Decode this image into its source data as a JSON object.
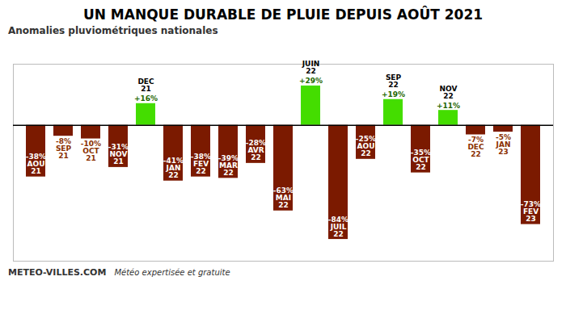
{
  "chart_data": {
    "type": "bar",
    "title": "UN MANQUE DURABLE DE PLUIE DEPUIS AOÛT 2021",
    "subtitle": "Anomalies pluviométriques nationales",
    "categories": [
      "AOU\n21",
      "SEP\n21",
      "OCT\n21",
      "NOV\n21",
      "DEC\n21",
      "JAN\n22",
      "FEV\n22",
      "MAR\n22",
      "AVR\n22",
      "MAI\n22",
      "JUIN\n22",
      "JUIL\n22",
      "AOU\n22",
      "SEP\n22",
      "OCT\n22",
      "NOV\n22",
      "DEC\n22",
      "JAN\n23",
      "FEV\n23"
    ],
    "values": [
      -38,
      -8,
      -10,
      -31,
      16,
      -41,
      -38,
      -39,
      -28,
      -63,
      29,
      -84,
      -25,
      19,
      -35,
      11,
      -7,
      -5,
      -73
    ],
    "value_labels": [
      "-38%",
      "-8%",
      "-10%",
      "-31%",
      "+16%",
      "-41%",
      "-38%",
      "-39%",
      "-28%",
      "-63%",
      "+29%",
      "-84%",
      "-25%",
      "+19%",
      "-35%",
      "+11%",
      "-7%",
      "-5%",
      "-73%"
    ],
    "colors": [
      "#7B1A00",
      "#7B1A00",
      "#7B1A00",
      "#7B1A00",
      "#44dd00",
      "#7B1A00",
      "#7B1A00",
      "#7B1A00",
      "#7B1A00",
      "#7B1A00",
      "#44dd00",
      "#7B1A00",
      "#7B1A00",
      "#44dd00",
      "#7B1A00",
      "#44dd00",
      "#7B1A00",
      "#7B1A00",
      "#7B1A00"
    ],
    "ylim": [
      -100,
      45
    ],
    "data_labels": true,
    "tick_labels": false,
    "grid": false,
    "annotations": [
      "METEO-VILLES.COM",
      "Météo expertisée et gratuite"
    ]
  }
}
